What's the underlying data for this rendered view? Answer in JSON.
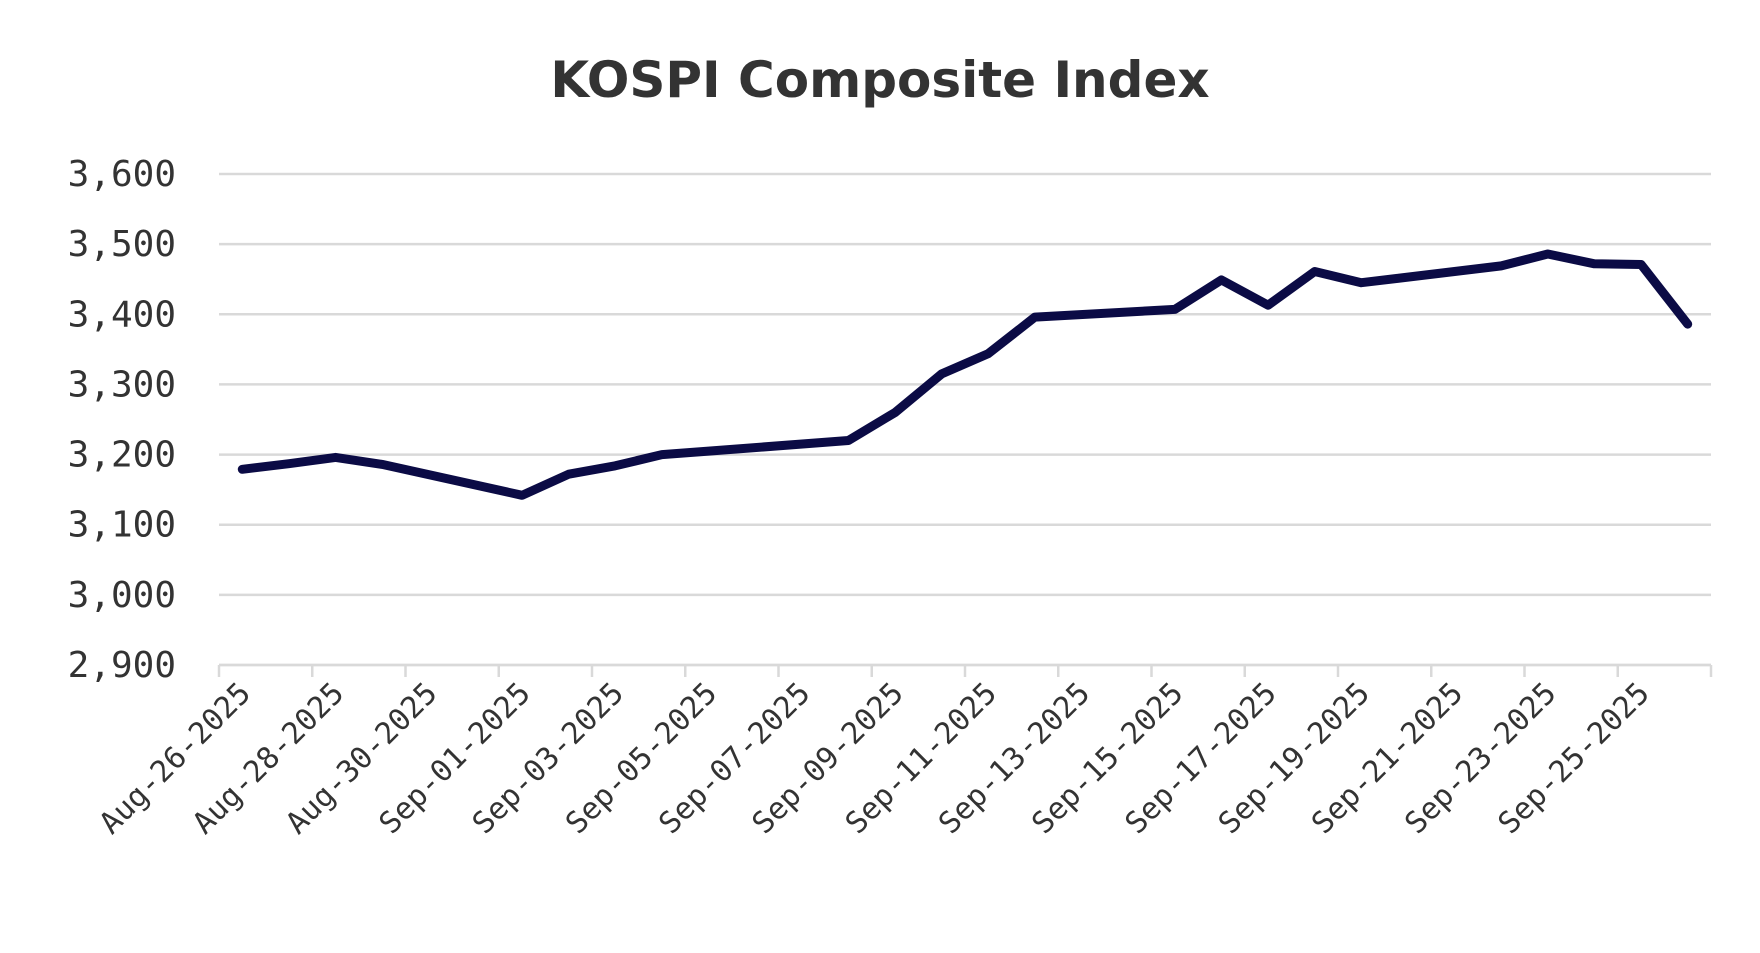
{
  "chart_data": {
    "type": "line",
    "title": "KOSPI Composite Index",
    "xlabel": "",
    "ylabel": "",
    "ylim": [
      2900,
      3600
    ],
    "yticks": [
      2900,
      3000,
      3100,
      3200,
      3300,
      3400,
      3500,
      3600
    ],
    "ytick_labels": [
      "2,900",
      "3,000",
      "3,100",
      "3,200",
      "3,300",
      "3,400",
      "3,500",
      "3,600"
    ],
    "xtick_labels": [
      "Aug-26-2025",
      "Aug-28-2025",
      "Aug-30-2025",
      "Sep-01-2025",
      "Sep-03-2025",
      "Sep-05-2025",
      "Sep-07-2025",
      "Sep-09-2025",
      "Sep-11-2025",
      "Sep-13-2025",
      "Sep-15-2025",
      "Sep-17-2025",
      "Sep-19-2025",
      "Sep-21-2025",
      "Sep-23-2025",
      "Sep-25-2025"
    ],
    "grid": true,
    "legend": "none",
    "series": [
      {
        "name": "KOSPI Composite Index",
        "color": "#0b0b45",
        "points": [
          {
            "date": "Aug-26-2025",
            "day": 0,
            "value": 3179
          },
          {
            "date": "Aug-27-2025",
            "day": 1,
            "value": 3187
          },
          {
            "date": "Aug-28-2025",
            "day": 2,
            "value": 3196
          },
          {
            "date": "Aug-29-2025",
            "day": 3,
            "value": 3186
          },
          {
            "date": "Sep-01-2025",
            "day": 6,
            "value": 3142
          },
          {
            "date": "Sep-02-2025",
            "day": 7,
            "value": 3172
          },
          {
            "date": "Sep-03-2025",
            "day": 8,
            "value": 3184
          },
          {
            "date": "Sep-04-2025",
            "day": 9,
            "value": 3200
          },
          {
            "date": "Sep-05-2025",
            "day": 10,
            "value": 3205
          },
          {
            "date": "Sep-08-2025",
            "day": 13,
            "value": 3220
          },
          {
            "date": "Sep-09-2025",
            "day": 14,
            "value": 3260
          },
          {
            "date": "Sep-10-2025",
            "day": 15,
            "value": 3315
          },
          {
            "date": "Sep-11-2025",
            "day": 16,
            "value": 3344
          },
          {
            "date": "Sep-12-2025",
            "day": 17,
            "value": 3396
          },
          {
            "date": "Sep-15-2025",
            "day": 20,
            "value": 3407
          },
          {
            "date": "Sep-16-2025",
            "day": 21,
            "value": 3449
          },
          {
            "date": "Sep-17-2025",
            "day": 22,
            "value": 3413
          },
          {
            "date": "Sep-18-2025",
            "day": 23,
            "value": 3461
          },
          {
            "date": "Sep-19-2025",
            "day": 24,
            "value": 3445
          },
          {
            "date": "Sep-22-2025",
            "day": 27,
            "value": 3469
          },
          {
            "date": "Sep-23-2025",
            "day": 28,
            "value": 3486
          },
          {
            "date": "Sep-24-2025",
            "day": 29,
            "value": 3472
          },
          {
            "date": "Sep-25-2025",
            "day": 30,
            "value": 3471
          },
          {
            "date": "Sep-26-2025",
            "day": 31,
            "value": 3386
          }
        ]
      }
    ]
  }
}
